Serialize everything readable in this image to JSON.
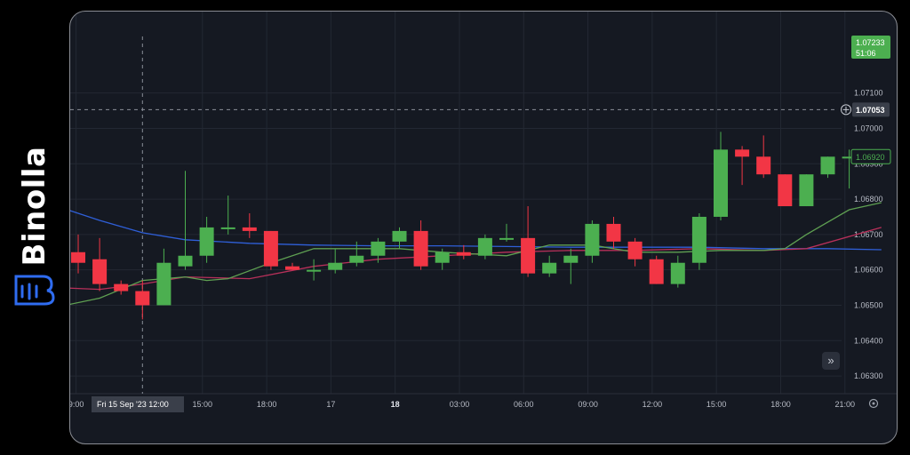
{
  "brand": {
    "name": "Binolla",
    "logo_icon": "binolla-logo-icon"
  },
  "colors": {
    "background": "#151922",
    "grid": "#232833",
    "text": "#b8bcc6",
    "up": "#4caf50",
    "down": "#f23645",
    "ma_blue": "#2f5fd8",
    "ma_red": "#b8305a",
    "ma_green": "#5fa052"
  },
  "chart_data": {
    "type": "candlestick",
    "title": "",
    "xlabel": "",
    "ylabel": "",
    "ylim": [
      1.0625,
      1.0728
    ],
    "y_ticks": [
      "1.06300",
      "1.06400",
      "1.06500",
      "1.06600",
      "1.06700",
      "1.06800",
      "1.06900",
      "1.07000",
      "1.07100"
    ],
    "x_ticks": [
      {
        "label": "9:00",
        "t": -0.1,
        "bold": false
      },
      {
        "label": "15:00",
        "t": 5.8,
        "bold": false
      },
      {
        "label": "18:00",
        "t": 8.8,
        "bold": false
      },
      {
        "label": "17",
        "t": 11.8,
        "bold": false
      },
      {
        "label": "18",
        "t": 14.8,
        "bold": true
      },
      {
        "label": "03:00",
        "t": 17.8,
        "bold": false
      },
      {
        "label": "06:00",
        "t": 20.8,
        "bold": false
      },
      {
        "label": "09:00",
        "t": 23.8,
        "bold": false
      },
      {
        "label": "12:00",
        "t": 26.8,
        "bold": false
      },
      {
        "label": "15:00",
        "t": 29.8,
        "bold": false
      },
      {
        "label": "18:00",
        "t": 32.8,
        "bold": false
      },
      {
        "label": "21:00",
        "t": 35.8,
        "bold": false
      }
    ],
    "crosshair": {
      "t": 3.0,
      "price": 1.07053,
      "price_label": "1.07053",
      "time_label": "Fri 15 Sep '23   12:00"
    },
    "current_price": {
      "value": 1.0692,
      "label": "1.06920"
    },
    "top_badge": {
      "price": "1.07233",
      "countdown": "51:06"
    },
    "candles": [
      {
        "o": 1.0665,
        "h": 1.067,
        "l": 1.0659,
        "c": 1.0662
      },
      {
        "o": 1.0663,
        "h": 1.0669,
        "l": 1.0654,
        "c": 1.0656
      },
      {
        "o": 1.0656,
        "h": 1.0657,
        "l": 1.0653,
        "c": 1.0654
      },
      {
        "o": 1.0654,
        "h": 1.0657,
        "l": 1.0646,
        "c": 1.065
      },
      {
        "o": 1.065,
        "h": 1.0666,
        "l": 1.065,
        "c": 1.0662
      },
      {
        "o": 1.0661,
        "h": 1.0688,
        "l": 1.066,
        "c": 1.0664
      },
      {
        "o": 1.0664,
        "h": 1.0675,
        "l": 1.0662,
        "c": 1.0672
      },
      {
        "o": 1.0672,
        "h": 1.0681,
        "l": 1.067,
        "c": 1.0672
      },
      {
        "o": 1.0672,
        "h": 1.0676,
        "l": 1.0669,
        "c": 1.0671
      },
      {
        "o": 1.0671,
        "h": 1.0671,
        "l": 1.066,
        "c": 1.0661
      },
      {
        "o": 1.0661,
        "h": 1.0662,
        "l": 1.066,
        "c": 1.066
      },
      {
        "o": 1.066,
        "h": 1.0663,
        "l": 1.0657,
        "c": 1.066
      },
      {
        "o": 1.066,
        "h": 1.0666,
        "l": 1.0659,
        "c": 1.0662
      },
      {
        "o": 1.0662,
        "h": 1.0668,
        "l": 1.0661,
        "c": 1.0664
      },
      {
        "o": 1.0664,
        "h": 1.0669,
        "l": 1.0662,
        "c": 1.0668
      },
      {
        "o": 1.0668,
        "h": 1.0672,
        "l": 1.0666,
        "c": 1.0671
      },
      {
        "o": 1.0671,
        "h": 1.0674,
        "l": 1.066,
        "c": 1.0661
      },
      {
        "o": 1.0662,
        "h": 1.0666,
        "l": 1.066,
        "c": 1.0665
      },
      {
        "o": 1.0665,
        "h": 1.0667,
        "l": 1.0663,
        "c": 1.0664
      },
      {
        "o": 1.0664,
        "h": 1.067,
        "l": 1.0663,
        "c": 1.0669
      },
      {
        "o": 1.0669,
        "h": 1.0673,
        "l": 1.0668,
        "c": 1.0669
      },
      {
        "o": 1.0669,
        "h": 1.0678,
        "l": 1.0658,
        "c": 1.0659
      },
      {
        "o": 1.0659,
        "h": 1.0664,
        "l": 1.0658,
        "c": 1.0662
      },
      {
        "o": 1.0662,
        "h": 1.0666,
        "l": 1.0656,
        "c": 1.0664
      },
      {
        "o": 1.0664,
        "h": 1.0674,
        "l": 1.0662,
        "c": 1.0673
      },
      {
        "o": 1.0673,
        "h": 1.0675,
        "l": 1.0666,
        "c": 1.0668
      },
      {
        "o": 1.0668,
        "h": 1.0669,
        "l": 1.0661,
        "c": 1.0663
      },
      {
        "o": 1.0663,
        "h": 1.0664,
        "l": 1.0656,
        "c": 1.0656
      },
      {
        "o": 1.0656,
        "h": 1.0664,
        "l": 1.0655,
        "c": 1.0662
      },
      {
        "o": 1.0662,
        "h": 1.0676,
        "l": 1.066,
        "c": 1.0675
      },
      {
        "o": 1.0675,
        "h": 1.0699,
        "l": 1.0674,
        "c": 1.0694
      },
      {
        "o": 1.0694,
        "h": 1.0695,
        "l": 1.0684,
        "c": 1.0692
      },
      {
        "o": 1.0692,
        "h": 1.0698,
        "l": 1.0686,
        "c": 1.0687
      },
      {
        "o": 1.0687,
        "h": 1.0687,
        "l": 1.0678,
        "c": 1.0678
      },
      {
        "o": 1.0678,
        "h": 1.0687,
        "l": 1.0678,
        "c": 1.0687
      },
      {
        "o": 1.0687,
        "h": 1.0692,
        "l": 1.0686,
        "c": 1.0692
      },
      {
        "o": 1.0692,
        "h": 1.0694,
        "l": 1.0683,
        "c": 1.0692
      }
    ],
    "moving_averages": [
      {
        "color": "#2f5fd8",
        "points": [
          [
            -1,
            1.0678
          ],
          [
            1,
            1.0674
          ],
          [
            3,
            1.06705
          ],
          [
            5,
            1.06685
          ],
          [
            8,
            1.06675
          ],
          [
            11,
            1.0667
          ],
          [
            14,
            1.06668
          ],
          [
            17,
            1.06668
          ],
          [
            20,
            1.06666
          ],
          [
            23,
            1.06664
          ],
          [
            26,
            1.06664
          ],
          [
            29,
            1.06664
          ],
          [
            32,
            1.0666
          ],
          [
            35,
            1.0666
          ],
          [
            37.5,
            1.06657
          ]
        ]
      },
      {
        "color": "#b8305a",
        "points": [
          [
            -1,
            1.0655
          ],
          [
            1,
            1.06545
          ],
          [
            3,
            1.0656
          ],
          [
            5,
            1.0658
          ],
          [
            8,
            1.06575
          ],
          [
            11,
            1.0661
          ],
          [
            14,
            1.0663
          ],
          [
            17,
            1.0664
          ],
          [
            20,
            1.0665
          ],
          [
            23,
            1.06655
          ],
          [
            26,
            1.06655
          ],
          [
            29,
            1.0666
          ],
          [
            32,
            1.06655
          ],
          [
            34,
            1.0666
          ],
          [
            37.5,
            1.0672
          ]
        ]
      },
      {
        "color": "#5fa052",
        "points": [
          [
            -1,
            1.06495
          ],
          [
            1,
            1.0652
          ],
          [
            3,
            1.0657
          ],
          [
            5,
            1.0658
          ],
          [
            6,
            1.0657
          ],
          [
            7,
            1.06575
          ],
          [
            9,
            1.0662
          ],
          [
            11,
            1.0666
          ],
          [
            13,
            1.0666
          ],
          [
            15,
            1.0666
          ],
          [
            17,
            1.0665
          ],
          [
            20,
            1.0664
          ],
          [
            22,
            1.0667
          ],
          [
            24,
            1.0667
          ],
          [
            26,
            1.0665
          ],
          [
            28,
            1.0665
          ],
          [
            30,
            1.06655
          ],
          [
            32,
            1.06655
          ],
          [
            33,
            1.0666
          ],
          [
            34,
            1.067
          ],
          [
            36,
            1.0677
          ],
          [
            37.5,
            1.0679
          ]
        ]
      }
    ]
  }
}
